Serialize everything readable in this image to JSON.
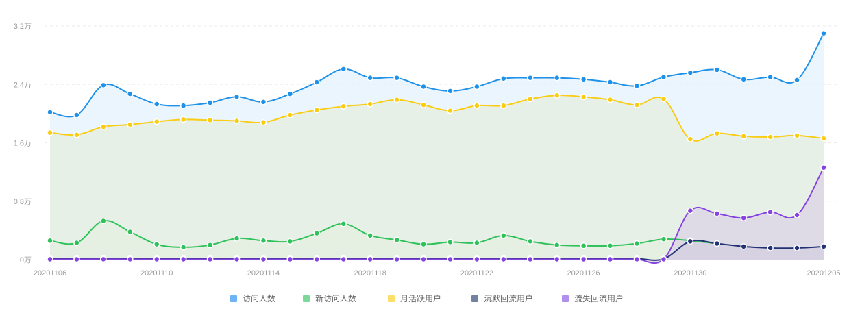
{
  "chart_data": {
    "type": "area",
    "x": [
      "20201106",
      "20201107",
      "20201108",
      "20201109",
      "20201110",
      "20201111",
      "20201112",
      "20201113",
      "20201114",
      "20201115",
      "20201116",
      "20201117",
      "20201118",
      "20201119",
      "20201120",
      "20201121",
      "20201122",
      "20201123",
      "20201124",
      "20201125",
      "20201126",
      "20201127",
      "20201128",
      "20201129",
      "20201130",
      "20201201",
      "20201202",
      "20201203",
      "20201204",
      "20201205"
    ],
    "x_tick_labels": [
      "20201106",
      "20201110",
      "20201114",
      "20201118",
      "20201122",
      "20201126",
      "20201130",
      "20201205"
    ],
    "y_tick_labels": [
      "0万",
      "0.8万",
      "1.6万",
      "2.4万",
      "3.2万"
    ],
    "y_ticks": [
      0,
      8000,
      16000,
      24000,
      32000
    ],
    "ylim": [
      0,
      32000
    ],
    "grid": "horizontal-dashed",
    "legend_position": "bottom",
    "series": [
      {
        "name": "访问人数",
        "color": "#1f91e8",
        "fill": "#e3f1fd",
        "fill_opacity": 0.75,
        "values": [
          20200,
          19800,
          23900,
          22700,
          21300,
          21100,
          21500,
          22300,
          21600,
          22700,
          24300,
          26100,
          24900,
          24900,
          23700,
          23100,
          23700,
          24800,
          24900,
          24900,
          24700,
          24300,
          23800,
          25000,
          25600,
          26000,
          24700,
          25000,
          24600,
          31000
        ]
      },
      {
        "name": "新访问人数",
        "color": "#2fc25b",
        "fill": "#d9ecd8",
        "fill_opacity": 0.8,
        "values": [
          2600,
          2300,
          5300,
          3800,
          2100,
          1700,
          2000,
          2900,
          2600,
          2500,
          3600,
          4900,
          3300,
          2700,
          2100,
          2400,
          2300,
          3300,
          2500,
          2000,
          1900,
          1900,
          2200,
          2800,
          2600,
          2200,
          null,
          null,
          null,
          null
        ]
      },
      {
        "name": "月活跃用户",
        "color": "#facc14",
        "fill": "#e6efe2",
        "fill_opacity": 0.85,
        "values": [
          17400,
          17100,
          18200,
          18500,
          18900,
          19200,
          19100,
          19000,
          18800,
          19800,
          20500,
          21000,
          21300,
          21900,
          21200,
          20400,
          21100,
          21100,
          22000,
          22500,
          22300,
          21900,
          21200,
          22000,
          16500,
          17300,
          16900,
          16800,
          17000,
          16600
        ]
      },
      {
        "name": "沉默回流用户",
        "color": "#223273",
        "fill": "#b5c2cc",
        "fill_opacity": 0.85,
        "values": [
          150,
          160,
          170,
          150,
          140,
          140,
          140,
          150,
          140,
          140,
          150,
          160,
          140,
          140,
          140,
          140,
          140,
          150,
          140,
          140,
          140,
          140,
          140,
          100,
          2500,
          2200,
          1800,
          1600,
          1600,
          1800
        ]
      },
      {
        "name": "流失回流用户",
        "color": "#8543e0",
        "fill": "#dcd5e6",
        "fill_opacity": 0.8,
        "values": [
          50,
          50,
          60,
          50,
          50,
          50,
          50,
          50,
          50,
          50,
          50,
          50,
          50,
          50,
          50,
          50,
          50,
          50,
          50,
          50,
          50,
          50,
          50,
          50,
          6700,
          6300,
          5700,
          6500,
          6100,
          12600
        ]
      }
    ],
    "legend": [
      {
        "label": "访问人数",
        "color": "#6eb3f5"
      },
      {
        "label": "新访问人数",
        "color": "#7dd99a"
      },
      {
        "label": "月活跃用户",
        "color": "#fbdf6a"
      },
      {
        "label": "沉默回流用户",
        "color": "#7382a3"
      },
      {
        "label": "流失回流用户",
        "color": "#b08fee"
      }
    ]
  }
}
